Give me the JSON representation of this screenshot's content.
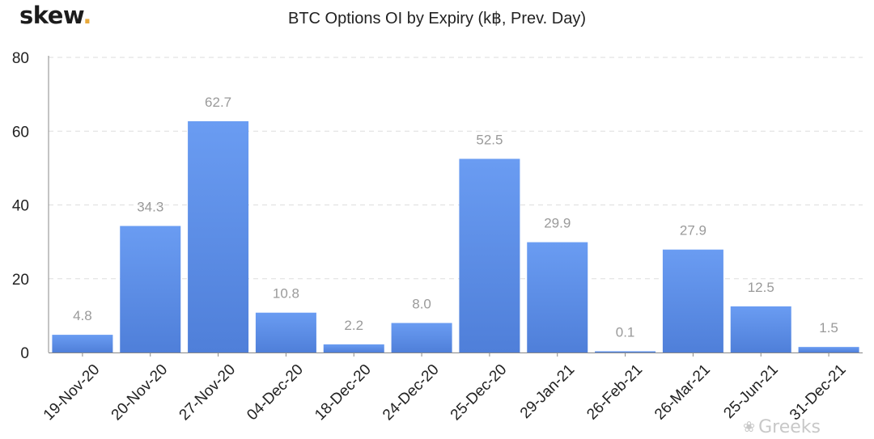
{
  "logo": {
    "text": "skew",
    "dot": "."
  },
  "watermark": {
    "text": "Greeks"
  },
  "colors": {
    "bar_top": "#6a9cf2",
    "bar_bottom": "#4f7fd9",
    "grid": "#dddddd",
    "axis_text": "#222222",
    "label_text": "#9a9a9a"
  },
  "chart_data": {
    "type": "bar",
    "title": "BTC Options OI by Expiry (k฿, Prev. Day)",
    "xlabel": "",
    "ylabel": "",
    "ylim": [
      0,
      80
    ],
    "yticks": [
      0,
      20,
      40,
      60,
      80
    ],
    "grid": true,
    "categories": [
      "19-Nov-20",
      "20-Nov-20",
      "27-Nov-20",
      "04-Dec-20",
      "18-Dec-20",
      "24-Dec-20",
      "25-Dec-20",
      "29-Jan-21",
      "26-Feb-21",
      "26-Mar-21",
      "25-Jun-21",
      "31-Dec-21"
    ],
    "values": [
      4.8,
      34.3,
      62.7,
      10.8,
      2.2,
      8.0,
      52.5,
      29.9,
      0.1,
      27.9,
      12.5,
      1.5
    ],
    "value_labels": [
      "4.8",
      "34.3",
      "62.7",
      "10.8",
      "2.2",
      "8.0",
      "52.5",
      "29.9",
      "0.1",
      "27.9",
      "12.5",
      "1.5"
    ]
  }
}
